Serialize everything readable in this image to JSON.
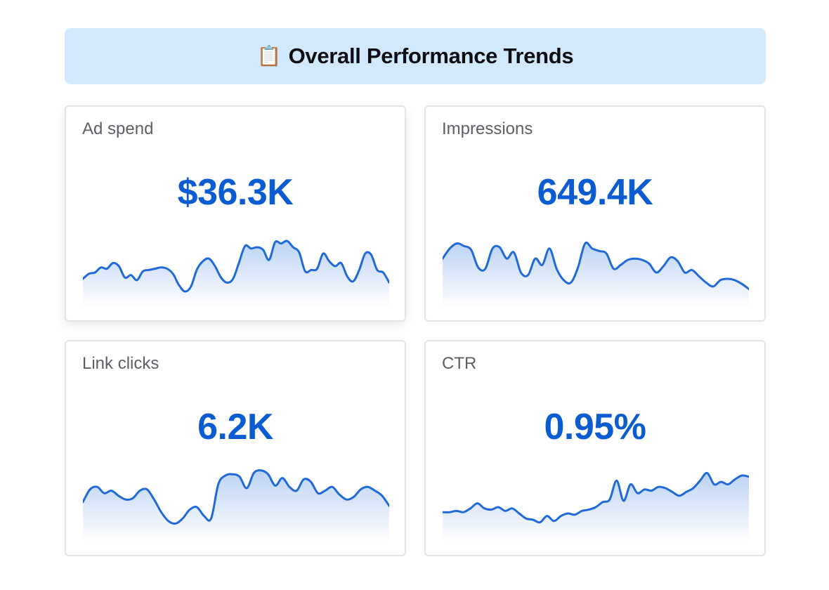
{
  "header": {
    "icon": "clipboard-icon",
    "icon_glyph": "📋",
    "title": "Overall Performance Trends"
  },
  "colors": {
    "banner_bg": "#d2e9fc",
    "value_color": "#0b5bd1",
    "line_color": "#1f6ad6"
  },
  "cards": [
    {
      "label": "Ad spend",
      "value": "$36.3K",
      "sparkline": [
        0.3,
        0.38,
        0.4,
        0.48,
        0.46,
        0.55,
        0.5,
        0.32,
        0.36,
        0.28,
        0.42,
        0.44,
        0.46,
        0.48,
        0.46,
        0.38,
        0.2,
        0.1,
        0.18,
        0.45,
        0.58,
        0.62,
        0.5,
        0.32,
        0.24,
        0.3,
        0.56,
        0.82,
        0.78,
        0.8,
        0.76,
        0.6,
        0.88,
        0.86,
        0.9,
        0.8,
        0.72,
        0.42,
        0.44,
        0.46,
        0.7,
        0.58,
        0.5,
        0.55,
        0.34,
        0.26,
        0.44,
        0.7,
        0.68,
        0.44,
        0.4,
        0.24
      ]
    },
    {
      "label": "Impressions",
      "value": "649.4K",
      "sparkline": [
        0.62,
        0.78,
        0.86,
        0.82,
        0.76,
        0.48,
        0.46,
        0.78,
        0.8,
        0.62,
        0.72,
        0.4,
        0.36,
        0.62,
        0.52,
        0.78,
        0.46,
        0.28,
        0.24,
        0.48,
        0.86,
        0.78,
        0.74,
        0.7,
        0.46,
        0.52,
        0.6,
        0.62,
        0.6,
        0.54,
        0.4,
        0.5,
        0.64,
        0.58,
        0.4,
        0.44,
        0.34,
        0.24,
        0.18,
        0.28,
        0.3,
        0.28,
        0.22,
        0.14
      ]
    },
    {
      "label": "Link clicks",
      "value": "6.2K",
      "sparkline": [
        0.48,
        0.68,
        0.72,
        0.62,
        0.66,
        0.58,
        0.52,
        0.54,
        0.66,
        0.68,
        0.52,
        0.32,
        0.18,
        0.14,
        0.22,
        0.36,
        0.4,
        0.26,
        0.22,
        0.76,
        0.9,
        0.92,
        0.88,
        0.7,
        0.94,
        0.98,
        0.92,
        0.74,
        0.86,
        0.72,
        0.66,
        0.84,
        0.8,
        0.62,
        0.66,
        0.72,
        0.6,
        0.52,
        0.56,
        0.68,
        0.72,
        0.66,
        0.58,
        0.42
      ]
    },
    {
      "label": "CTR",
      "value": "0.95%",
      "sparkline": [
        0.32,
        0.32,
        0.34,
        0.32,
        0.38,
        0.46,
        0.38,
        0.36,
        0.4,
        0.34,
        0.38,
        0.3,
        0.22,
        0.2,
        0.16,
        0.26,
        0.18,
        0.26,
        0.3,
        0.28,
        0.34,
        0.36,
        0.4,
        0.48,
        0.52,
        0.82,
        0.5,
        0.76,
        0.62,
        0.68,
        0.66,
        0.72,
        0.7,
        0.64,
        0.58,
        0.64,
        0.7,
        0.82,
        0.94,
        0.76,
        0.8,
        0.76,
        0.84,
        0.9,
        0.88
      ]
    }
  ]
}
